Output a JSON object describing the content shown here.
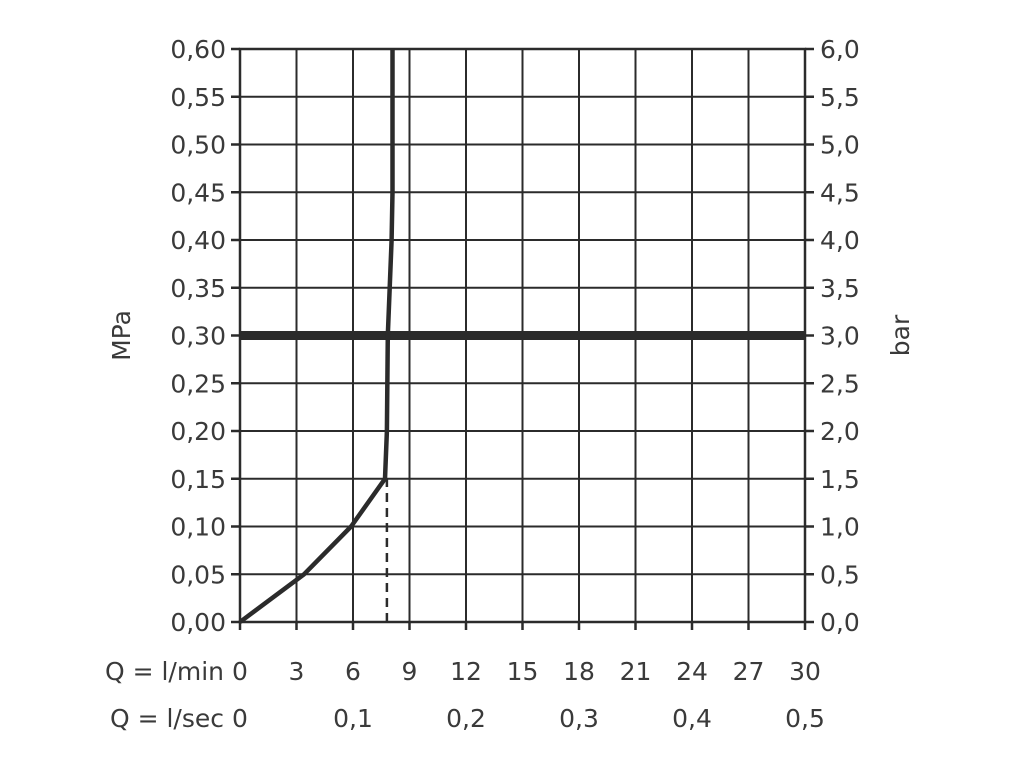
{
  "chart_data": {
    "type": "line",
    "y_left": {
      "label": "MPa",
      "range": [
        0,
        0.6
      ],
      "ticks": [
        {
          "v": 0.0,
          "label": "0,00"
        },
        {
          "v": 0.05,
          "label": "0,05"
        },
        {
          "v": 0.1,
          "label": "0,10"
        },
        {
          "v": 0.15,
          "label": "0,15"
        },
        {
          "v": 0.2,
          "label": "0,20"
        },
        {
          "v": 0.25,
          "label": "0,25"
        },
        {
          "v": 0.3,
          "label": "0,30"
        },
        {
          "v": 0.35,
          "label": "0,35"
        },
        {
          "v": 0.4,
          "label": "0,40"
        },
        {
          "v": 0.45,
          "label": "0,45"
        },
        {
          "v": 0.5,
          "label": "0,50"
        },
        {
          "v": 0.55,
          "label": "0,55"
        },
        {
          "v": 0.6,
          "label": "0,60"
        }
      ]
    },
    "y_right": {
      "label": "bar",
      "range": [
        0,
        6
      ],
      "ticks": [
        {
          "v": 0.0,
          "label": "0,0"
        },
        {
          "v": 0.5,
          "label": "0,5"
        },
        {
          "v": 1.0,
          "label": "1,0"
        },
        {
          "v": 1.5,
          "label": "1,5"
        },
        {
          "v": 2.0,
          "label": "2,0"
        },
        {
          "v": 2.5,
          "label": "2,5"
        },
        {
          "v": 3.0,
          "label": "3,0"
        },
        {
          "v": 3.5,
          "label": "3,5"
        },
        {
          "v": 4.0,
          "label": "4,0"
        },
        {
          "v": 4.5,
          "label": "4,5"
        },
        {
          "v": 5.0,
          "label": "5,0"
        },
        {
          "v": 5.5,
          "label": "5,5"
        },
        {
          "v": 6.0,
          "label": "6,0"
        }
      ]
    },
    "x_lmin": {
      "label": "Q = l/min",
      "range": [
        0,
        30
      ],
      "ticks": [
        {
          "v": 0,
          "label": "0"
        },
        {
          "v": 3,
          "label": "3"
        },
        {
          "v": 6,
          "label": "6"
        },
        {
          "v": 9,
          "label": "9"
        },
        {
          "v": 12,
          "label": "12"
        },
        {
          "v": 15,
          "label": "15"
        },
        {
          "v": 18,
          "label": "18"
        },
        {
          "v": 21,
          "label": "21"
        },
        {
          "v": 24,
          "label": "24"
        },
        {
          "v": 27,
          "label": "27"
        },
        {
          "v": 30,
          "label": "30"
        }
      ]
    },
    "x_lsec": {
      "label": "Q = l/sec",
      "range": [
        0,
        0.5
      ],
      "ticks": [
        {
          "v": 0,
          "label": "0"
        },
        {
          "v": 0.1,
          "label": "0,1"
        },
        {
          "v": 0.2,
          "label": "0,2"
        },
        {
          "v": 0.3,
          "label": "0,3"
        },
        {
          "v": 0.4,
          "label": "0,4"
        },
        {
          "v": 0.5,
          "label": "0,5"
        }
      ]
    },
    "grid": true,
    "reference_line": {
      "y": 0.3
    },
    "marker_line": {
      "x": 7.8,
      "y_from": 0,
      "y_to": 0.15
    },
    "series": [
      {
        "points": [
          {
            "x": 0,
            "y": 0.0
          },
          {
            "x": 3.4,
            "y": 0.05
          },
          {
            "x": 5.9,
            "y": 0.1
          },
          {
            "x": 7.7,
            "y": 0.15
          },
          {
            "x": 7.8,
            "y": 0.2
          },
          {
            "x": 7.85,
            "y": 0.3
          },
          {
            "x": 7.95,
            "y": 0.35
          },
          {
            "x": 8.05,
            "y": 0.4
          },
          {
            "x": 8.1,
            "y": 0.45
          },
          {
            "x": 8.1,
            "y": 0.6
          }
        ]
      }
    ]
  }
}
